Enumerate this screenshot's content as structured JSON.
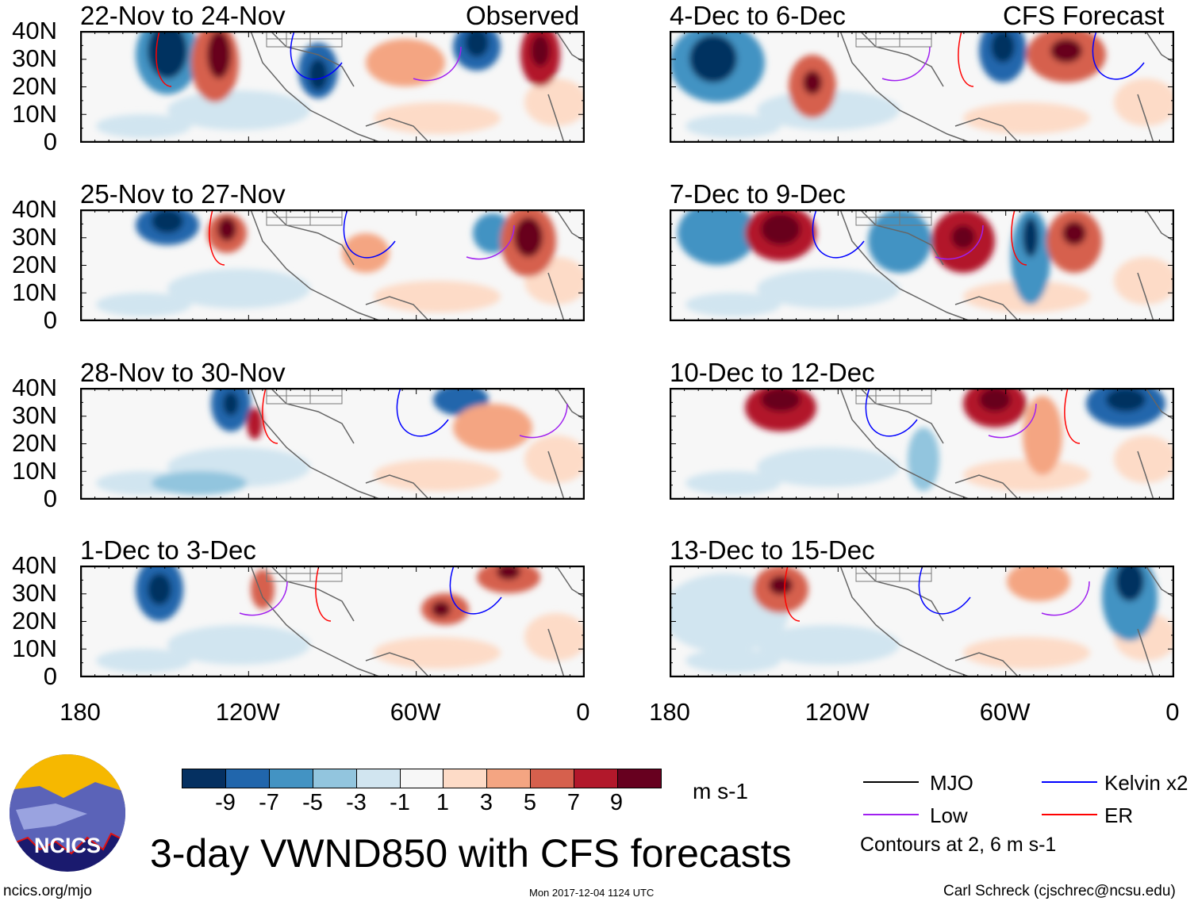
{
  "header": {
    "observed_label": "Observed",
    "forecast_label": "CFS Forecast"
  },
  "panels": {
    "observed": [
      "22-Nov to 24-Nov",
      "25-Nov to 27-Nov",
      "28-Nov to 30-Nov",
      "1-Dec to 3-Dec"
    ],
    "forecast": [
      "4-Dec to 6-Dec",
      "7-Dec to 9-Dec",
      "10-Dec to 12-Dec",
      "13-Dec to 15-Dec"
    ]
  },
  "axes": {
    "lat_ticks": [
      "40N",
      "30N",
      "20N",
      "10N",
      "0"
    ],
    "lon_ticks": [
      "180",
      "120W",
      "60W",
      "0"
    ]
  },
  "colorbar": {
    "labels": [
      "-9",
      "-7",
      "-5",
      "-3",
      "-1",
      "1",
      "3",
      "5",
      "7",
      "9"
    ],
    "units": "m s-1",
    "colors": [
      "#053061",
      "#2166ac",
      "#4393c3",
      "#92c5de",
      "#d1e5f0",
      "#f7f7f7",
      "#fddbc7",
      "#f4a582",
      "#d6604d",
      "#b2182b",
      "#67001f"
    ]
  },
  "legend": {
    "items": [
      {
        "label": "MJO",
        "color": "#000000"
      },
      {
        "label": "Kelvin x2",
        "color": "#0000ff"
      },
      {
        "label": "Low",
        "color": "#a020f0"
      },
      {
        "label": "ER",
        "color": "#ff0000"
      }
    ],
    "contours_note": "Contours at 2, 6 m s-1"
  },
  "footer": {
    "title": "3-day VWND850 with CFS forecasts",
    "site": "ncics.org/mjo",
    "timestamp": "Mon 2017-12-04 1124 UTC",
    "credit": "Carl Schreck (cjschrec@ncsu.edu)",
    "logo_text": "NCICS"
  }
}
